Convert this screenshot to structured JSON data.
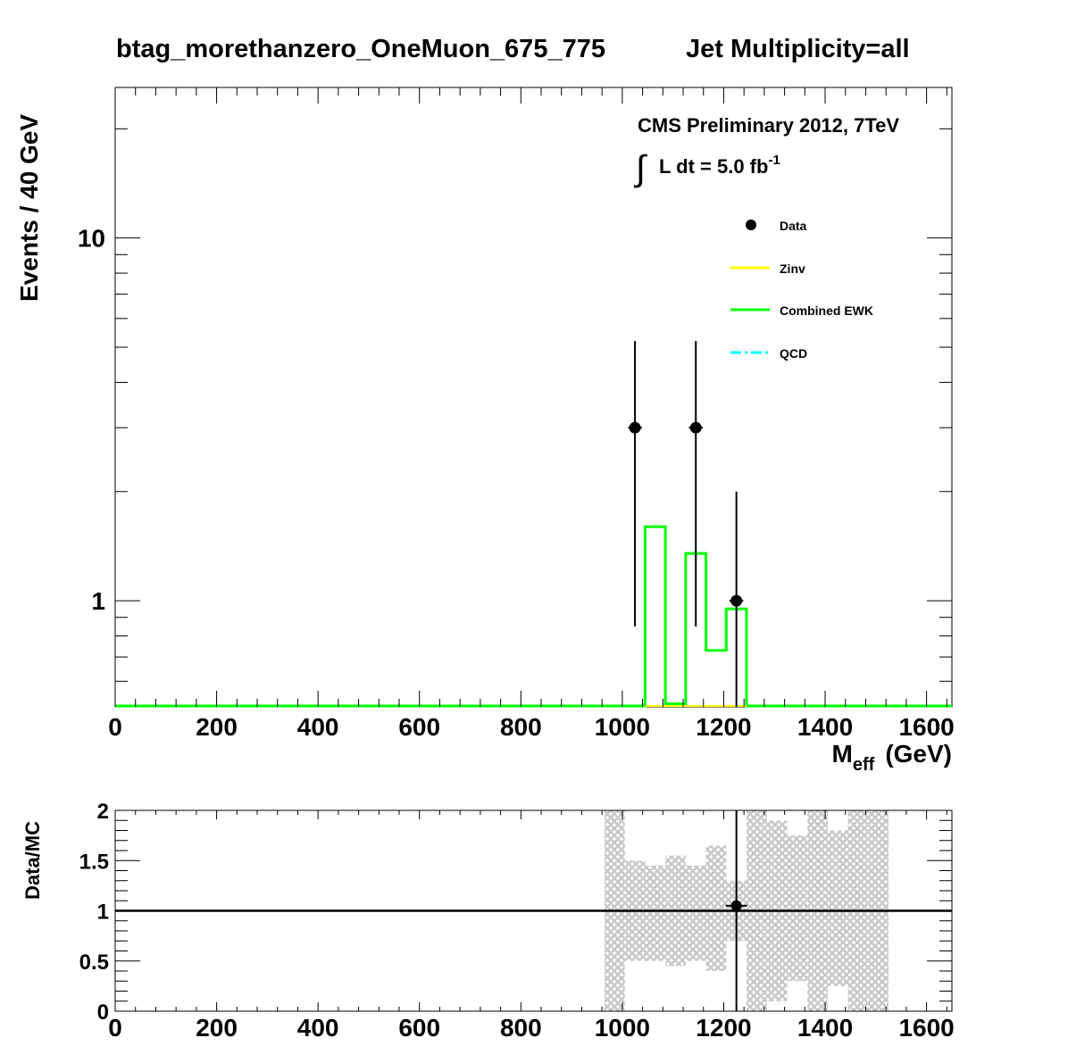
{
  "title_left": "btag_morethanzero_OneMuon_675_775",
  "title_right": "Jet Multiplicity=all",
  "cms_label": "CMS Preliminary 2012, 7TeV",
  "lumi": {
    "integral": "∫",
    "text": "L dt = 5.0 fb",
    "sup": "-1"
  },
  "legend": {
    "placement": "top-right",
    "entries": [
      {
        "label": "Data",
        "color": "#000000",
        "style": "marker"
      },
      {
        "label": "Zinv",
        "color": "#ffff00",
        "style": "line"
      },
      {
        "label": "Combined EWK",
        "color": "#00ff00",
        "style": "line"
      },
      {
        "label": "QCD",
        "color": "#00ffff",
        "style": "dash-dot"
      }
    ]
  },
  "chart_data": [
    {
      "type": "line",
      "title": "btag_morethanzero_OneMuon_675_775    Jet Multiplicity=all",
      "xlabel_main": "M",
      "xlabel_sub": "eff",
      "xlabel_unit": "(GeV)",
      "ylabel": "Events / 40 GeV",
      "xlim": [
        0,
        1650
      ],
      "ylim": [
        0.51,
        26
      ],
      "yscale": "log",
      "x_ticks": [
        0,
        200,
        400,
        600,
        800,
        1000,
        1200,
        1400,
        1600
      ],
      "y_ticks": [
        1,
        10
      ],
      "bin_width": 40,
      "series": [
        {
          "name": "Data",
          "style": "points",
          "color": "#000000",
          "points": [
            {
              "x": 1025,
              "y": 3,
              "ylo": 0.85,
              "yhi": 5.2
            },
            {
              "x": 1145,
              "y": 3,
              "ylo": 0.85,
              "yhi": 5.2
            },
            {
              "x": 1225,
              "y": 1,
              "ylo": 0.51,
              "yhi": 2.0
            }
          ]
        },
        {
          "name": "Combined EWK",
          "style": "step",
          "color": "#00ff00",
          "bins": [
            {
              "lo": 1045,
              "hi": 1085,
              "y": 1.6
            },
            {
              "lo": 1085,
              "hi": 1125,
              "y": 0.52
            },
            {
              "lo": 1125,
              "hi": 1165,
              "y": 1.35
            },
            {
              "lo": 1165,
              "hi": 1205,
              "y": 0.73
            },
            {
              "lo": 1205,
              "hi": 1245,
              "y": 0.95
            }
          ]
        },
        {
          "name": "Zinv",
          "style": "step",
          "color": "#ffff00",
          "bins": []
        },
        {
          "name": "QCD",
          "style": "step",
          "color": "#00ffff",
          "bins": []
        }
      ]
    },
    {
      "type": "scatter",
      "ylabel": "Data/MC",
      "xlim": [
        0,
        1650
      ],
      "ylim": [
        0,
        2
      ],
      "x_ticks": [
        0,
        200,
        400,
        600,
        800,
        1000,
        1200,
        1400,
        1600
      ],
      "y_ticks": [
        0,
        0.5,
        1,
        1.5,
        2
      ],
      "y_tick_labels": [
        "0",
        "0.5",
        "1",
        "1.5",
        "2"
      ],
      "reference_line": 1,
      "ratio_points": [
        {
          "x": 1225,
          "y": 1.05,
          "ylo": 0,
          "yhi": 2
        }
      ],
      "uncertainty_band": {
        "color": "#c8c8c8",
        "bins": [
          {
            "lo": 965,
            "hi": 1005,
            "lo_y": 0,
            "hi_y": 2
          },
          {
            "lo": 1005,
            "hi": 1045,
            "lo_y": 0.5,
            "hi_y": 1.5
          },
          {
            "lo": 1045,
            "hi": 1085,
            "lo_y": 0.5,
            "hi_y": 1.45
          },
          {
            "lo": 1085,
            "hi": 1125,
            "lo_y": 0.45,
            "hi_y": 1.55
          },
          {
            "lo": 1125,
            "hi": 1165,
            "lo_y": 0.5,
            "hi_y": 1.45
          },
          {
            "lo": 1165,
            "hi": 1205,
            "lo_y": 0.4,
            "hi_y": 1.65
          },
          {
            "lo": 1205,
            "hi": 1245,
            "lo_y": 0.7,
            "hi_y": 1.3
          },
          {
            "lo": 1245,
            "hi": 1285,
            "lo_y": 0,
            "hi_y": 2
          },
          {
            "lo": 1285,
            "hi": 1325,
            "lo_y": 0.1,
            "hi_y": 1.9
          },
          {
            "lo": 1325,
            "hi": 1365,
            "lo_y": 0.3,
            "hi_y": 1.75
          },
          {
            "lo": 1365,
            "hi": 1405,
            "lo_y": 0,
            "hi_y": 2
          },
          {
            "lo": 1405,
            "hi": 1445,
            "lo_y": 0.25,
            "hi_y": 1.8
          },
          {
            "lo": 1445,
            "hi": 1485,
            "lo_y": 0,
            "hi_y": 2
          },
          {
            "lo": 1485,
            "hi": 1525,
            "lo_y": 0,
            "hi_y": 2
          }
        ]
      }
    }
  ]
}
